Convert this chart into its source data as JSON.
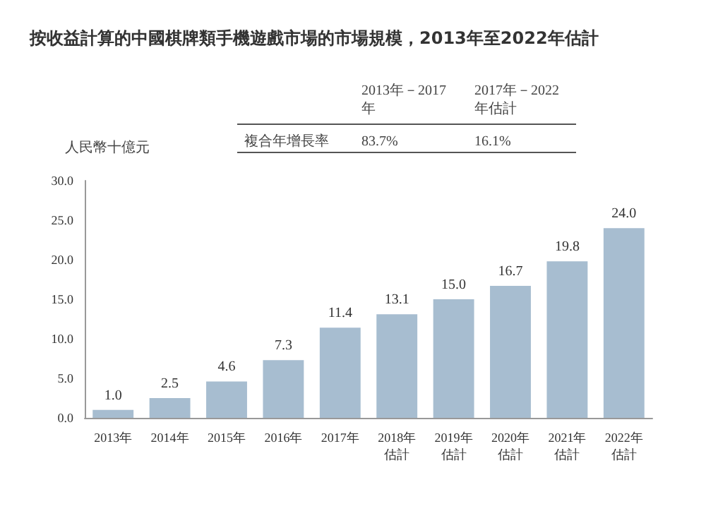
{
  "chart_data": {
    "type": "bar",
    "title": "按收益計算的中國棋牌類手機遊戲市場的市場規模，2013年至2022年估計",
    "ylabel": "人民幣十億元",
    "annotations": [
      "2013年－2017年",
      "2017年－2022年估計",
      "複合年增長率",
      "83.7%",
      "16.1%"
    ],
    "categories": [
      "2013年",
      "2014年",
      "2015年",
      "2016年",
      "2017年",
      "2018年估計",
      "2019年估計",
      "2020年估計",
      "2021年估計",
      "2022年估計"
    ],
    "values": [
      1.0,
      2.5,
      4.6,
      7.3,
      11.4,
      13.1,
      15.0,
      16.7,
      19.8,
      24.0
    ],
    "value_labels": [
      "1.0",
      "2.5",
      "4.6",
      "7.3",
      "11.4",
      "13.1",
      "15.0",
      "16.7",
      "19.8",
      "24.0"
    ],
    "color": "#a7bdd0",
    "ylim": [
      0,
      30
    ],
    "yticks": [
      {
        "value": 0,
        "label": "0.0"
      },
      {
        "value": 5,
        "label": "5.0"
      },
      {
        "value": 10,
        "label": "10.0"
      },
      {
        "value": 15,
        "label": "15.0"
      },
      {
        "value": 20,
        "label": "20.0"
      },
      {
        "value": 25,
        "label": "25.0"
      },
      {
        "value": 30,
        "label": "30.0"
      }
    ],
    "grid": false
  }
}
